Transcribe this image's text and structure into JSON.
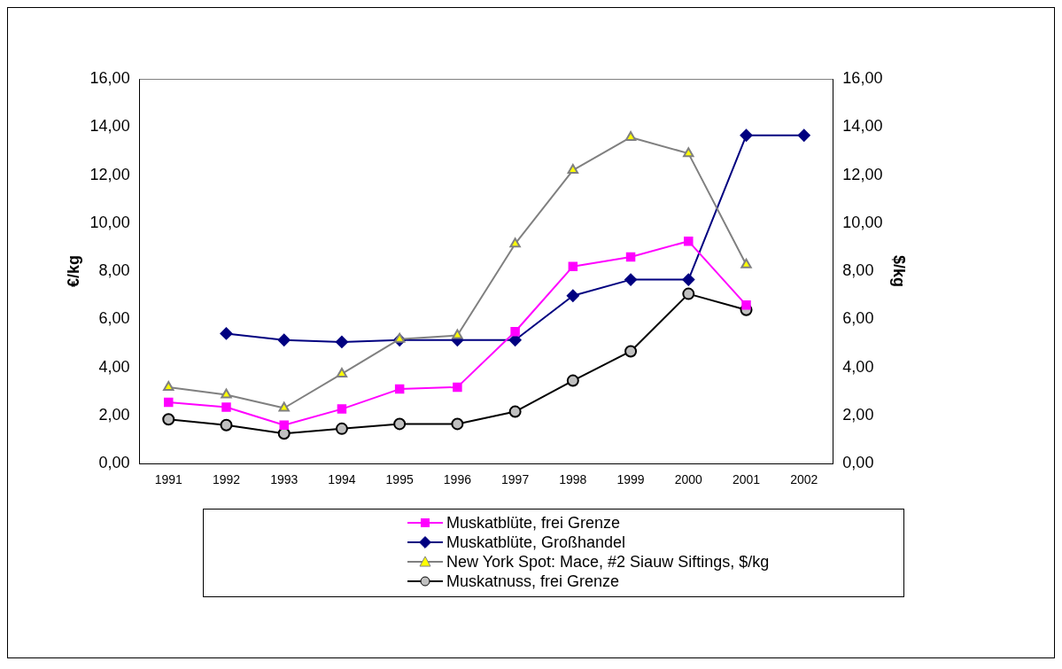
{
  "chart_data": {
    "type": "line",
    "ylabel": "€/kg",
    "y2label": "$/kg",
    "categories": [
      "1991",
      "1992",
      "1993",
      "1994",
      "1995",
      "1996",
      "1997",
      "1998",
      "1999",
      "2000",
      "2001",
      "2002"
    ],
    "series": [
      {
        "name": "Muskatblüte, frei Grenze",
        "color": "#ff00ff",
        "marker": "square",
        "colors": [
          "#ff00ff",
          "#ff00ff",
          "#ff00ff",
          "#ff00ff",
          "#ff00ff",
          "#ff00ff",
          "#ff00ff",
          "#ff00ff",
          "#ff00ff",
          "#ff00ff",
          "#ff00ff",
          "#ff00ff"
        ],
        "values": [
          2.55,
          2.35,
          1.6,
          2.27,
          3.1,
          3.18,
          5.49,
          8.2,
          8.59,
          9.25,
          6.59,
          null
        ]
      },
      {
        "name": "Muskatblüte, Großhandel",
        "color": "#000080",
        "marker": "diamond",
        "colors": [
          "#000080",
          "#000080",
          "#000080",
          "#000080",
          "#000080",
          "#000080",
          "#000080",
          "#000080",
          "#000080",
          "#000080",
          "#000080",
          "#000080"
        ],
        "values": [
          null,
          5.41,
          5.14,
          5.06,
          5.14,
          5.14,
          5.14,
          6.98,
          7.65,
          7.65,
          13.65,
          13.65
        ]
      },
      {
        "name": "New York Spot: Mace, #2 Siauw Siftings, $/kg",
        "color": "#808080",
        "marker": "triangle",
        "colors": [
          "#ffff00",
          "#ffff00",
          "#ffff00",
          "#ffff00",
          "#ffff00",
          "#ffff00",
          "#ffff00",
          "#ffff00",
          "#ffff00",
          "#ffff00",
          "#ffff00",
          "#ffff00"
        ],
        "axis": "y2",
        "values": [
          3.18,
          2.86,
          2.31,
          3.73,
          5.18,
          5.33,
          9.14,
          12.2,
          13.57,
          12.9,
          8.27,
          null
        ]
      },
      {
        "name": "Muskatnuss, frei Grenze",
        "color": "#000000",
        "marker": "circle",
        "colors": [
          "#c0c0c0",
          "#c0c0c0",
          "#c0c0c0",
          "#c0c0c0",
          "#c0c0c0",
          "#c0c0c0",
          "#c0c0c0",
          "#c0c0c0",
          "#c0c0c0",
          "#c0c0c0",
          "#c0c0c0",
          "#c0c0c0"
        ],
        "values": [
          1.84,
          1.6,
          1.25,
          1.45,
          1.65,
          1.65,
          2.16,
          3.45,
          4.67,
          7.06,
          6.39,
          null
        ]
      }
    ],
    "ylim": [
      0,
      16
    ],
    "yticks": [
      {
        "value": 0,
        "label": "0,00"
      },
      {
        "value": 2,
        "label": "2,00"
      },
      {
        "value": 4,
        "label": "4,00"
      },
      {
        "value": 6,
        "label": "6,00"
      },
      {
        "value": 8,
        "label": "8,00"
      },
      {
        "value": 10,
        "label": "10,00"
      },
      {
        "value": 12,
        "label": "12,00"
      },
      {
        "value": 14,
        "label": "14,00"
      },
      {
        "value": 16,
        "label": "16,00"
      }
    ],
    "y2lim": [
      0,
      16
    ],
    "y2ticks": [
      {
        "value": 0,
        "label": "0,00"
      },
      {
        "value": 2,
        "label": "2,00"
      },
      {
        "value": 4,
        "label": "4,00"
      },
      {
        "value": 6,
        "label": "6,00"
      },
      {
        "value": 8,
        "label": "8,00"
      },
      {
        "value": 10,
        "label": "10,00"
      },
      {
        "value": 12,
        "label": "12,00"
      },
      {
        "value": 14,
        "label": "14,00"
      },
      {
        "value": 16,
        "label": "16,00"
      }
    ],
    "grid": false,
    "legend": "bottom",
    "line_style": "solid"
  }
}
